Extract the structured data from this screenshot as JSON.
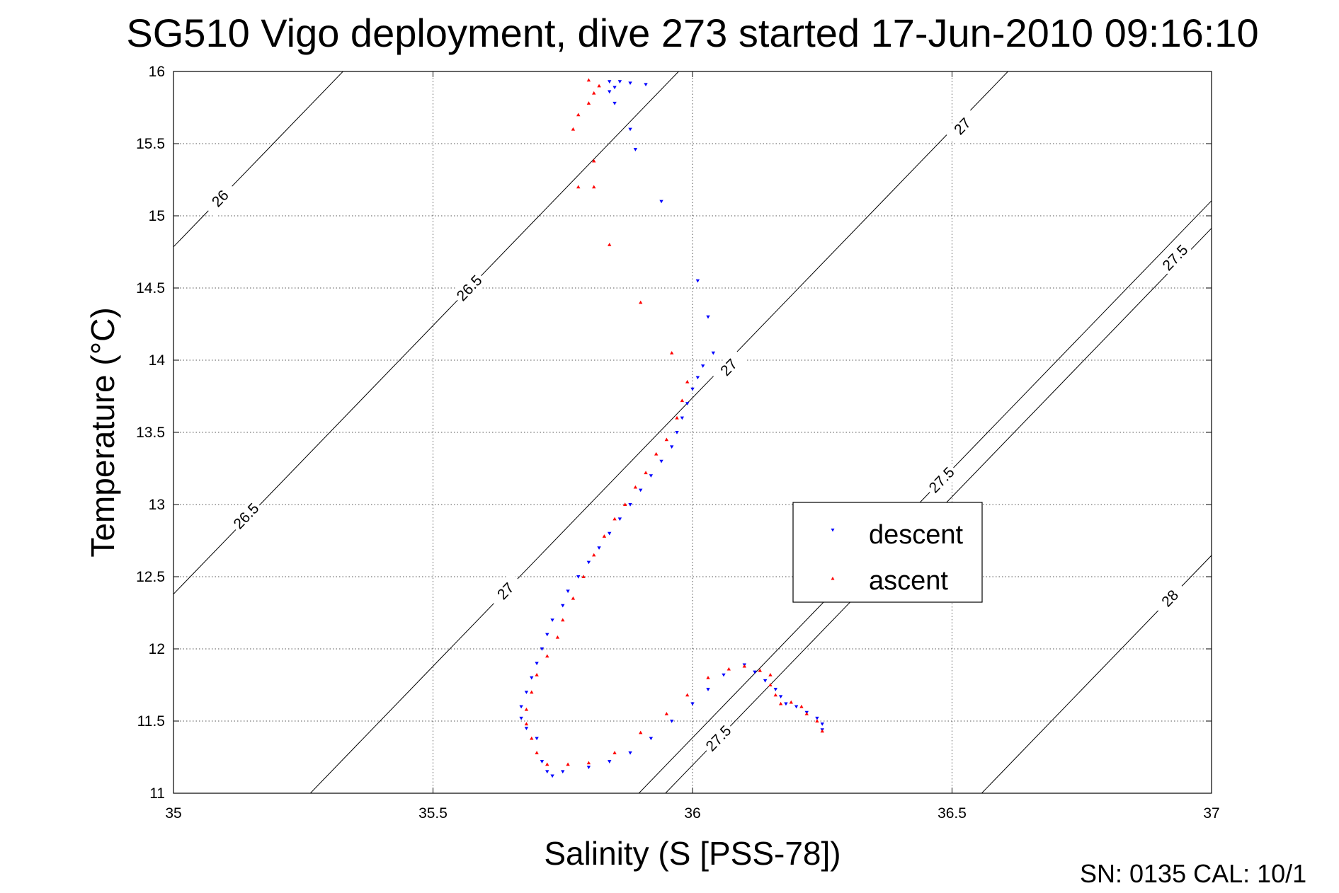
{
  "chart_data": {
    "type": "scatter",
    "title": "SG510 Vigo deployment, dive 273 started 17-Jun-2010 09:16:10",
    "xlabel": "Salinity (S [PSS-78])",
    "ylabel": "Temperature (°C)",
    "xlim": [
      35,
      37
    ],
    "ylim": [
      11,
      16
    ],
    "x_ticks": [
      "35",
      "35.5",
      "36",
      "36.5",
      "37"
    ],
    "y_ticks": [
      "11",
      "11.5",
      "12",
      "12.5",
      "13",
      "13.5",
      "14",
      "14.5",
      "15",
      "15.5",
      "16"
    ],
    "grid": true,
    "footer": "SN: 0135  CAL: 10/1",
    "legend": {
      "position": "center-right"
    },
    "density_contours": [
      {
        "label": "26",
        "anchor": [
          35.09,
          15.12
        ]
      },
      {
        "label": "26.5",
        "anchor": [
          35.57,
          14.5
        ]
      },
      {
        "label": "26.5",
        "anchor": [
          35.14,
          12.92
        ]
      },
      {
        "label": "27",
        "anchor": [
          35.64,
          12.4
        ]
      },
      {
        "label": "27",
        "anchor": [
          36.07,
          13.95
        ]
      },
      {
        "label": "27",
        "anchor": [
          36.52,
          15.62
        ]
      },
      {
        "label": "27.5",
        "anchor": [
          36.05,
          11.38
        ]
      },
      {
        "label": "27.5",
        "anchor": [
          36.48,
          13.17
        ]
      },
      {
        "label": "27.5",
        "anchor": [
          36.93,
          14.71
        ]
      },
      {
        "label": "28",
        "anchor": [
          36.92,
          12.35
        ]
      }
    ],
    "series": [
      {
        "name": "descent",
        "color": "#0000ff",
        "marker": "triangle-down",
        "points": [
          [
            35.84,
            15.93
          ],
          [
            35.86,
            15.93
          ],
          [
            35.88,
            15.92
          ],
          [
            35.91,
            15.91
          ],
          [
            35.85,
            15.89
          ],
          [
            35.84,
            15.86
          ],
          [
            35.85,
            15.78
          ],
          [
            35.88,
            15.6
          ],
          [
            35.89,
            15.46
          ],
          [
            35.94,
            15.1
          ],
          [
            36.01,
            14.55
          ],
          [
            36.03,
            14.3
          ],
          [
            36.04,
            14.05
          ],
          [
            36.02,
            13.96
          ],
          [
            36.01,
            13.88
          ],
          [
            36.0,
            13.8
          ],
          [
            35.99,
            13.7
          ],
          [
            35.98,
            13.6
          ],
          [
            35.97,
            13.5
          ],
          [
            35.96,
            13.4
          ],
          [
            35.94,
            13.3
          ],
          [
            35.92,
            13.2
          ],
          [
            35.9,
            13.1
          ],
          [
            35.88,
            13.0
          ],
          [
            35.86,
            12.9
          ],
          [
            35.84,
            12.8
          ],
          [
            35.82,
            12.7
          ],
          [
            35.8,
            12.6
          ],
          [
            35.78,
            12.5
          ],
          [
            35.76,
            12.4
          ],
          [
            35.75,
            12.3
          ],
          [
            35.73,
            12.2
          ],
          [
            35.72,
            12.1
          ],
          [
            35.71,
            12.0
          ],
          [
            35.7,
            11.9
          ],
          [
            35.69,
            11.8
          ],
          [
            35.68,
            11.7
          ],
          [
            35.67,
            11.6
          ],
          [
            35.67,
            11.52
          ],
          [
            35.68,
            11.45
          ],
          [
            35.7,
            11.38
          ],
          [
            35.71,
            11.22
          ],
          [
            35.72,
            11.15
          ],
          [
            35.73,
            11.12
          ],
          [
            35.75,
            11.15
          ],
          [
            35.8,
            11.18
          ],
          [
            35.84,
            11.22
          ],
          [
            35.88,
            11.28
          ],
          [
            35.92,
            11.38
          ],
          [
            35.96,
            11.5
          ],
          [
            36.0,
            11.62
          ],
          [
            36.03,
            11.72
          ],
          [
            36.06,
            11.82
          ],
          [
            36.1,
            11.89
          ],
          [
            36.12,
            11.84
          ],
          [
            36.14,
            11.78
          ],
          [
            36.16,
            11.72
          ],
          [
            36.17,
            11.67
          ],
          [
            36.18,
            11.62
          ],
          [
            36.2,
            11.6
          ],
          [
            36.22,
            11.56
          ],
          [
            36.24,
            11.52
          ],
          [
            36.25,
            11.48
          ],
          [
            36.25,
            11.44
          ]
        ]
      },
      {
        "name": "ascent",
        "color": "#ff0000",
        "marker": "triangle-up",
        "points": [
          [
            36.25,
            11.43
          ],
          [
            36.24,
            11.5
          ],
          [
            36.22,
            11.55
          ],
          [
            36.21,
            11.6
          ],
          [
            36.19,
            11.63
          ],
          [
            36.17,
            11.62
          ],
          [
            36.16,
            11.68
          ],
          [
            36.15,
            11.75
          ],
          [
            36.15,
            11.82
          ],
          [
            36.13,
            11.85
          ],
          [
            36.1,
            11.88
          ],
          [
            36.07,
            11.86
          ],
          [
            36.03,
            11.8
          ],
          [
            35.99,
            11.68
          ],
          [
            35.95,
            11.55
          ],
          [
            35.9,
            11.42
          ],
          [
            35.85,
            11.28
          ],
          [
            35.8,
            11.21
          ],
          [
            35.76,
            11.2
          ],
          [
            35.72,
            11.2
          ],
          [
            35.7,
            11.28
          ],
          [
            35.69,
            11.38
          ],
          [
            35.68,
            11.48
          ],
          [
            35.68,
            11.58
          ],
          [
            35.69,
            11.7
          ],
          [
            35.7,
            11.82
          ],
          [
            35.72,
            11.95
          ],
          [
            35.74,
            12.08
          ],
          [
            35.75,
            12.2
          ],
          [
            35.77,
            12.35
          ],
          [
            35.79,
            12.5
          ],
          [
            35.81,
            12.65
          ],
          [
            35.83,
            12.78
          ],
          [
            35.85,
            12.9
          ],
          [
            35.87,
            13.0
          ],
          [
            35.89,
            13.12
          ],
          [
            35.91,
            13.22
          ],
          [
            35.93,
            13.35
          ],
          [
            35.95,
            13.45
          ],
          [
            35.97,
            13.6
          ],
          [
            35.98,
            13.72
          ],
          [
            35.99,
            13.85
          ],
          [
            35.96,
            14.05
          ],
          [
            35.9,
            14.4
          ],
          [
            35.84,
            14.8
          ],
          [
            35.81,
            15.2
          ],
          [
            35.78,
            15.2
          ],
          [
            35.81,
            15.38
          ],
          [
            35.77,
            15.6
          ],
          [
            35.78,
            15.7
          ],
          [
            35.8,
            15.78
          ],
          [
            35.81,
            15.85
          ],
          [
            35.82,
            15.9
          ],
          [
            35.8,
            15.94
          ]
        ]
      }
    ]
  }
}
